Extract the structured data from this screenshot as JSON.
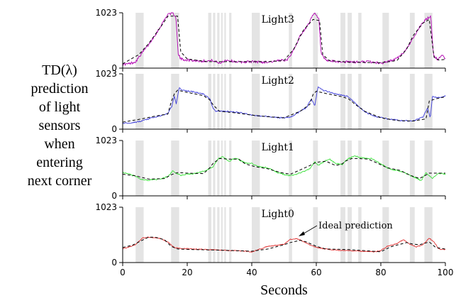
{
  "ylabel_lines": [
    "TD(λ)",
    "prediction",
    "of light",
    "sensors",
    "when",
    "entering",
    "next corner"
  ],
  "xlabel": "Seconds",
  "annotation": "Ideal prediction",
  "colors": {
    "Light3": "#b000b0",
    "Light2": "#3a3ad8",
    "Light1": "#38e038",
    "Light0": "#e03030",
    "ideal": "#000000",
    "shade": "#e4e4e4"
  },
  "chart_data": {
    "type": "line",
    "xlim": [
      0,
      100
    ],
    "ylim": [
      0,
      1023
    ],
    "x_ticks": [
      0,
      20,
      40,
      60,
      80,
      100
    ],
    "y_ticks": [
      "0",
      "1023"
    ],
    "shaded_intervals": [
      [
        4,
        6.5
      ],
      [
        15,
        17.5
      ],
      [
        26.5,
        27.5
      ],
      [
        28,
        28.7
      ],
      [
        29.3,
        30
      ],
      [
        30.5,
        31
      ],
      [
        31.5,
        32
      ],
      [
        33,
        33.7
      ],
      [
        40,
        42.5
      ],
      [
        51.5,
        52.5
      ],
      [
        59,
        60.5
      ],
      [
        67.5,
        69
      ],
      [
        69.7,
        71
      ],
      [
        73,
        74
      ],
      [
        80.5,
        82.5
      ],
      [
        89,
        90.5
      ],
      [
        93.5,
        96
      ]
    ],
    "panels": [
      {
        "name": "Light3",
        "series_color": "#b000b0",
        "ideal": [
          [
            0,
            80
          ],
          [
            5,
            250
          ],
          [
            8,
            450
          ],
          [
            12,
            780
          ],
          [
            14,
            960
          ],
          [
            17,
            960
          ],
          [
            18,
            300
          ],
          [
            20,
            170
          ],
          [
            26,
            120
          ],
          [
            40,
            120
          ],
          [
            45,
            120
          ],
          [
            50,
            140
          ],
          [
            53,
            350
          ],
          [
            56,
            700
          ],
          [
            59,
            900
          ],
          [
            61,
            880
          ],
          [
            62,
            250
          ],
          [
            64,
            140
          ],
          [
            70,
            110
          ],
          [
            80,
            100
          ],
          [
            85,
            140
          ],
          [
            88,
            350
          ],
          [
            90,
            600
          ],
          [
            93,
            830
          ],
          [
            95,
            900
          ],
          [
            96.5,
            200
          ],
          [
            98,
            150
          ],
          [
            100,
            160
          ]
        ],
        "signal": [
          [
            0,
            70
          ],
          [
            2,
            80
          ],
          [
            4,
            120
          ],
          [
            6,
            280
          ],
          [
            8,
            430
          ],
          [
            9,
            520
          ],
          [
            11,
            700
          ],
          [
            12,
            800
          ],
          [
            14,
            1000
          ],
          [
            15.5,
            1020
          ],
          [
            16.5,
            950
          ],
          [
            17.2,
            260
          ],
          [
            18,
            170
          ],
          [
            20,
            150
          ],
          [
            24,
            130
          ],
          [
            28,
            140
          ],
          [
            30,
            90
          ],
          [
            32,
            150
          ],
          [
            36,
            110
          ],
          [
            40,
            120
          ],
          [
            44,
            110
          ],
          [
            48,
            130
          ],
          [
            51,
            160
          ],
          [
            53,
            330
          ],
          [
            55,
            600
          ],
          [
            57,
            760
          ],
          [
            58.5,
            930
          ],
          [
            59.5,
            1010
          ],
          [
            60.8,
            900
          ],
          [
            61.5,
            250
          ],
          [
            63,
            140
          ],
          [
            66,
            120
          ],
          [
            72,
            110
          ],
          [
            76,
            120
          ],
          [
            80,
            90
          ],
          [
            84,
            150
          ],
          [
            86,
            220
          ],
          [
            88,
            360
          ],
          [
            90,
            560
          ],
          [
            92,
            760
          ],
          [
            94,
            900
          ],
          [
            95.5,
            960
          ],
          [
            96.3,
            250
          ],
          [
            97.5,
            160
          ],
          [
            99,
            230
          ],
          [
            100,
            180
          ]
        ]
      },
      {
        "name": "Light2",
        "series_color": "#3a3ad8",
        "ideal": [
          [
            0,
            130
          ],
          [
            5,
            180
          ],
          [
            10,
            240
          ],
          [
            14,
            280
          ],
          [
            15,
            500
          ],
          [
            16,
            650
          ],
          [
            17,
            720
          ],
          [
            20,
            680
          ],
          [
            25,
            620
          ],
          [
            27,
            540
          ],
          [
            28,
            450
          ],
          [
            30,
            330
          ],
          [
            35,
            300
          ],
          [
            40,
            260
          ],
          [
            45,
            230
          ],
          [
            50,
            210
          ],
          [
            55,
            330
          ],
          [
            58,
            460
          ],
          [
            59,
            640
          ],
          [
            60,
            700
          ],
          [
            63,
            660
          ],
          [
            68,
            600
          ],
          [
            70,
            560
          ],
          [
            72,
            460
          ],
          [
            75,
            330
          ],
          [
            80,
            210
          ],
          [
            85,
            160
          ],
          [
            90,
            150
          ],
          [
            94,
            190
          ],
          [
            95,
            520
          ],
          [
            97,
            560
          ],
          [
            100,
            600
          ]
        ],
        "signal": [
          [
            0,
            110
          ],
          [
            3,
            120
          ],
          [
            6,
            150
          ],
          [
            9,
            210
          ],
          [
            12,
            250
          ],
          [
            14,
            290
          ],
          [
            15.2,
            420
          ],
          [
            16,
            600
          ],
          [
            16.6,
            470
          ],
          [
            17.5,
            760
          ],
          [
            18.5,
            720
          ],
          [
            22,
            690
          ],
          [
            25,
            650
          ],
          [
            27,
            560
          ],
          [
            28,
            380
          ],
          [
            29,
            330
          ],
          [
            31,
            330
          ],
          [
            34,
            320
          ],
          [
            37,
            300
          ],
          [
            40,
            260
          ],
          [
            43,
            240
          ],
          [
            46,
            230
          ],
          [
            49,
            210
          ],
          [
            52,
            220
          ],
          [
            55,
            330
          ],
          [
            57,
            400
          ],
          [
            58.5,
            560
          ],
          [
            59.5,
            420
          ],
          [
            60.5,
            780
          ],
          [
            62,
            720
          ],
          [
            66,
            650
          ],
          [
            70,
            600
          ],
          [
            72,
            480
          ],
          [
            75,
            320
          ],
          [
            78,
            240
          ],
          [
            82,
            190
          ],
          [
            86,
            160
          ],
          [
            90,
            150
          ],
          [
            93,
            220
          ],
          [
            94.5,
            390
          ],
          [
            95.3,
            200
          ],
          [
            96,
            600
          ],
          [
            98,
            580
          ],
          [
            100,
            620
          ]
        ]
      },
      {
        "name": "Light1",
        "series_color": "#38e038",
        "ideal": [
          [
            0,
            400
          ],
          [
            4,
            370
          ],
          [
            8,
            310
          ],
          [
            13,
            320
          ],
          [
            15,
            390
          ],
          [
            17,
            430
          ],
          [
            20,
            420
          ],
          [
            25,
            410
          ],
          [
            27,
            520
          ],
          [
            28,
            600
          ],
          [
            30,
            690
          ],
          [
            33,
            680
          ],
          [
            36,
            680
          ],
          [
            38,
            590
          ],
          [
            41,
            540
          ],
          [
            45,
            500
          ],
          [
            49,
            430
          ],
          [
            52,
            400
          ],
          [
            55,
            480
          ],
          [
            58,
            560
          ],
          [
            60,
            620
          ],
          [
            63,
            640
          ],
          [
            66,
            560
          ],
          [
            68,
            590
          ],
          [
            69,
            640
          ],
          [
            71,
            690
          ],
          [
            73,
            690
          ],
          [
            76,
            680
          ],
          [
            78,
            630
          ],
          [
            82,
            520
          ],
          [
            86,
            470
          ],
          [
            89,
            380
          ],
          [
            92,
            320
          ],
          [
            95,
            420
          ],
          [
            100,
            420
          ]
        ],
        "signal": [
          [
            0,
            430
          ],
          [
            2,
            400
          ],
          [
            4,
            360
          ],
          [
            6,
            300
          ],
          [
            8,
            290
          ],
          [
            10,
            300
          ],
          [
            12,
            320
          ],
          [
            14,
            360
          ],
          [
            15.5,
            460
          ],
          [
            16.5,
            420
          ],
          [
            18,
            380
          ],
          [
            20,
            400
          ],
          [
            23,
            420
          ],
          [
            26,
            470
          ],
          [
            28,
            540
          ],
          [
            29.5,
            680
          ],
          [
            31,
            720
          ],
          [
            33,
            640
          ],
          [
            35,
            700
          ],
          [
            38,
            610
          ],
          [
            40,
            600
          ],
          [
            42,
            540
          ],
          [
            45,
            520
          ],
          [
            48,
            430
          ],
          [
            51,
            380
          ],
          [
            53,
            380
          ],
          [
            56,
            450
          ],
          [
            58,
            500
          ],
          [
            59.5,
            640
          ],
          [
            60.5,
            560
          ],
          [
            62,
            620
          ],
          [
            64,
            680
          ],
          [
            66,
            600
          ],
          [
            68,
            580
          ],
          [
            70,
            690
          ],
          [
            72,
            740
          ],
          [
            74,
            700
          ],
          [
            77,
            690
          ],
          [
            79,
            630
          ],
          [
            82,
            520
          ],
          [
            84,
            480
          ],
          [
            87,
            440
          ],
          [
            89,
            380
          ],
          [
            91,
            330
          ],
          [
            92.5,
            280
          ],
          [
            94,
            420
          ],
          [
            96,
            330
          ],
          [
            98,
            420
          ],
          [
            100,
            400
          ]
        ]
      },
      {
        "name": "Light0",
        "series_color": "#e03030",
        "ideal": [
          [
            0,
            280
          ],
          [
            3,
            320
          ],
          [
            6,
            410
          ],
          [
            8,
            470
          ],
          [
            10,
            470
          ],
          [
            13,
            420
          ],
          [
            15,
            300
          ],
          [
            17,
            250
          ],
          [
            22,
            240
          ],
          [
            30,
            230
          ],
          [
            40,
            210
          ],
          [
            45,
            250
          ],
          [
            50,
            330
          ],
          [
            52,
            370
          ],
          [
            55,
            410
          ],
          [
            57,
            380
          ],
          [
            60,
            300
          ],
          [
            63,
            250
          ],
          [
            70,
            240
          ],
          [
            80,
            200
          ],
          [
            83,
            290
          ],
          [
            88,
            370
          ],
          [
            90,
            340
          ],
          [
            92,
            330
          ],
          [
            95,
            380
          ],
          [
            97,
            280
          ],
          [
            100,
            250
          ]
        ],
        "signal": [
          [
            0,
            260
          ],
          [
            2,
            290
          ],
          [
            4,
            330
          ],
          [
            6,
            450
          ],
          [
            8,
            470
          ],
          [
            10,
            460
          ],
          [
            12,
            440
          ],
          [
            14,
            380
          ],
          [
            16,
            280
          ],
          [
            18,
            260
          ],
          [
            22,
            250
          ],
          [
            26,
            240
          ],
          [
            30,
            230
          ],
          [
            34,
            220
          ],
          [
            38,
            210
          ],
          [
            40,
            190
          ],
          [
            42,
            240
          ],
          [
            45,
            300
          ],
          [
            48,
            320
          ],
          [
            50,
            340
          ],
          [
            52,
            430
          ],
          [
            54,
            440
          ],
          [
            56,
            390
          ],
          [
            58,
            330
          ],
          [
            60,
            280
          ],
          [
            63,
            250
          ],
          [
            66,
            230
          ],
          [
            70,
            220
          ],
          [
            74,
            210
          ],
          [
            78,
            200
          ],
          [
            80,
            220
          ],
          [
            82,
            300
          ],
          [
            85,
            350
          ],
          [
            87,
            420
          ],
          [
            89,
            340
          ],
          [
            91,
            290
          ],
          [
            93,
            330
          ],
          [
            95,
            450
          ],
          [
            96.5,
            380
          ],
          [
            98,
            250
          ],
          [
            100,
            240
          ]
        ]
      }
    ]
  }
}
